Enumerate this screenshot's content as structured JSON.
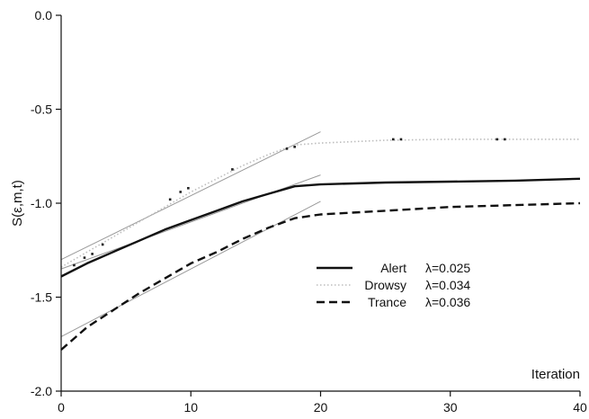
{
  "chart_data": {
    "type": "line",
    "xlabel": "Iteration",
    "ylabel": "S(ε,m,t)",
    "xlim": [
      0,
      40
    ],
    "ylim": [
      -2.0,
      0.0
    ],
    "x_ticks": [
      "0",
      "10",
      "20",
      "30",
      "40"
    ],
    "y_ticks": [
      "0.0",
      "-0.5",
      "-1.0",
      "-1.5",
      "-2.0"
    ],
    "grid": false,
    "legend_position": "lower-right",
    "series": [
      {
        "name": "Alert",
        "lambda": "λ=0.025",
        "style": "solid",
        "color": "#111111",
        "x": [
          0,
          2,
          4,
          6,
          8,
          10,
          12,
          14,
          16,
          18,
          20,
          25,
          30,
          35,
          40
        ],
        "y": [
          -1.39,
          -1.32,
          -1.26,
          -1.2,
          -1.14,
          -1.09,
          -1.04,
          -0.99,
          -0.95,
          -0.91,
          -0.9,
          -0.89,
          -0.885,
          -0.88,
          -0.87
        ]
      },
      {
        "name": "Drowsy",
        "lambda": "λ=0.034",
        "style": "dotted",
        "color": "#bdbdbd",
        "x": [
          0,
          2,
          4,
          6,
          8,
          10,
          12,
          14,
          16,
          18,
          20,
          25,
          30,
          35,
          40
        ],
        "y": [
          -1.34,
          -1.26,
          -1.18,
          -1.1,
          -1.02,
          -0.94,
          -0.87,
          -0.8,
          -0.74,
          -0.69,
          -0.68,
          -0.665,
          -0.66,
          -0.66,
          -0.66
        ]
      },
      {
        "name": "Trance",
        "lambda": "λ=0.036",
        "style": "dashed",
        "color": "#111111",
        "x": [
          0,
          2,
          4,
          6,
          8,
          10,
          12,
          14,
          16,
          18,
          20,
          25,
          30,
          35,
          40
        ],
        "y": [
          -1.78,
          -1.66,
          -1.57,
          -1.48,
          -1.4,
          -1.32,
          -1.26,
          -1.19,
          -1.13,
          -1.08,
          -1.06,
          -1.04,
          -1.02,
          -1.01,
          -1.0
        ]
      }
    ],
    "fit_lines": [
      {
        "x": [
          0,
          20
        ],
        "y": [
          -1.35,
          -0.85
        ]
      },
      {
        "x": [
          0,
          20
        ],
        "y": [
          -1.3,
          -0.62
        ]
      },
      {
        "x": [
          0,
          20
        ],
        "y": [
          -1.71,
          -0.99
        ]
      }
    ],
    "scatter_points": {
      "x": [
        1,
        1.8,
        2.4,
        3.2,
        8.4,
        9.2,
        9.8,
        13.2,
        17.4,
        18,
        25.6,
        26.2,
        33.6,
        34.2
      ],
      "y": [
        -1.33,
        -1.29,
        -1.27,
        -1.22,
        -0.98,
        -0.94,
        -0.92,
        -0.82,
        -0.71,
        -0.7,
        -0.66,
        -0.66,
        -0.66,
        -0.66
      ]
    }
  }
}
